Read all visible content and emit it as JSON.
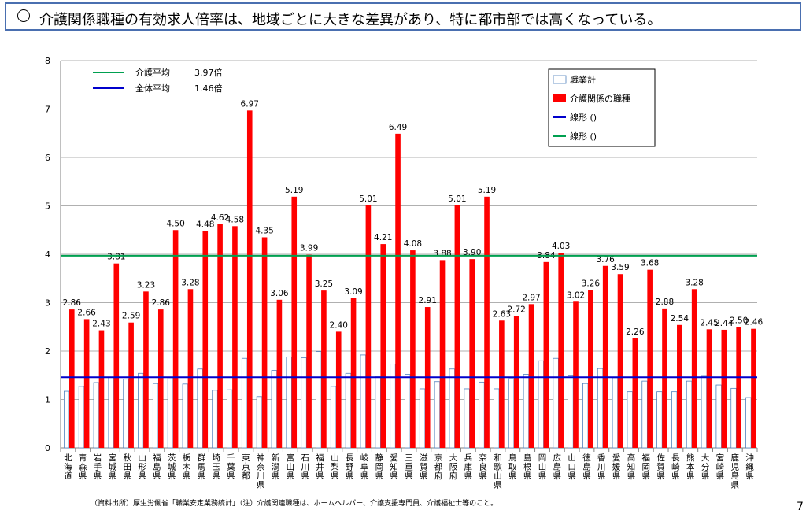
{
  "header": {
    "title": "介護関係職種の有効求人倍率は、地域ごとに大きな差異があり、特に都市部では高くなっている。"
  },
  "footer": {
    "source": "（資料出所）厚生労働省「職業安定業務統計」（注）介護関連職種は、ホームヘルパー、介護支援専門員、介護福祉士等のこと。",
    "page_number": "7"
  },
  "chart_data": {
    "type": "bar",
    "categories": [
      "北海道",
      "青森県",
      "岩手県",
      "宮城県",
      "秋田県",
      "山形県",
      "福島県",
      "茨城県",
      "栃木県",
      "群馬県",
      "埼玉県",
      "千葉県",
      "東京都",
      "神奈川県",
      "新潟県",
      "富山県",
      "石川県",
      "福井県",
      "山梨県",
      "長野県",
      "岐阜県",
      "静岡県",
      "愛知県",
      "三重県",
      "滋賀県",
      "京都府",
      "大阪府",
      "兵庫県",
      "奈良県",
      "和歌山県",
      "鳥取県",
      "島根県",
      "岡山県",
      "広島県",
      "山口県",
      "徳島県",
      "香川県",
      "愛媛県",
      "高知県",
      "福岡県",
      "佐賀県",
      "長崎県",
      "熊本県",
      "大分県",
      "宮崎県",
      "鹿児島県",
      "沖縄県"
    ],
    "series": [
      {
        "name": "職業計",
        "color": "#ffffff",
        "stroke": "#4f81bd",
        "values": [
          1.17,
          1.27,
          1.35,
          1.46,
          1.42,
          1.54,
          1.33,
          1.45,
          1.32,
          1.63,
          1.19,
          1.2,
          1.85,
          1.06,
          1.6,
          1.88,
          1.86,
          1.99,
          1.27,
          1.54,
          1.92,
          1.47,
          1.73,
          1.52,
          1.22,
          1.37,
          1.63,
          1.22,
          1.36,
          1.22,
          1.43,
          1.52,
          1.8,
          1.85,
          1.49,
          1.33,
          1.64,
          1.45,
          1.16,
          1.38,
          1.16,
          1.16,
          1.38,
          1.48,
          1.3,
          1.23,
          1.04
        ]
      },
      {
        "name": "介護関係の職種",
        "color": "#ff0000",
        "values": [
          2.86,
          2.66,
          2.43,
          3.81,
          2.59,
          3.23,
          2.86,
          4.5,
          3.28,
          4.48,
          4.62,
          4.58,
          6.97,
          4.35,
          3.06,
          5.19,
          3.99,
          3.25,
          2.4,
          3.09,
          5.01,
          4.21,
          6.49,
          4.08,
          2.91,
          3.88,
          5.01,
          3.9,
          5.19,
          2.63,
          2.72,
          2.97,
          3.84,
          4.03,
          3.02,
          3.26,
          3.76,
          3.59,
          2.26,
          3.68,
          2.88,
          2.54,
          3.28,
          2.45,
          2.44,
          2.5,
          2.46
        ]
      }
    ],
    "data_labels": [
      "2.86",
      "2.66",
      "2.43",
      "3.81",
      "2.59",
      "3.23",
      "2.86",
      "4.50",
      "3.28",
      "4.48",
      "4.62",
      "4.58",
      "6.97",
      "4.35",
      "3.06",
      "5.19",
      "3.99",
      "3.25",
      "2.40",
      "3.09",
      "5.01",
      "4.21",
      "6.49",
      "4.08",
      "2.91",
      "3.88",
      "5.01",
      "3.90",
      "5.19",
      "2.63",
      "2.72",
      "2.97",
      "3.84",
      "4.03",
      "3.02",
      "3.26",
      "3.76",
      "3.59",
      "2.26",
      "3.68",
      "2.88",
      "2.54",
      "3.28",
      "2.45",
      "2.44",
      "2.50",
      "2.46"
    ],
    "reference_lines": [
      {
        "name": "介護平均",
        "value": 3.97,
        "label": "3.97倍",
        "color": "#00a050"
      },
      {
        "name": "全体平均",
        "value": 1.46,
        "label": "1.46倍",
        "color": "#0000cc"
      }
    ],
    "legend": {
      "placement": "top-right",
      "items": [
        {
          "label": "職業計",
          "kind": "box",
          "color": "#ffffff",
          "stroke": "#4f81bd"
        },
        {
          "label": "介護関係の職種",
          "kind": "box",
          "color": "#ff0000"
        },
        {
          "label": "線形 ()",
          "kind": "line",
          "color": "#0000cc"
        },
        {
          "label": "線形 ()",
          "kind": "line",
          "color": "#00a050"
        }
      ]
    },
    "ylim": [
      0,
      8
    ],
    "yticks": [
      "0",
      "1",
      "2",
      "3",
      "4",
      "5",
      "6",
      "7",
      "8"
    ],
    "grid": true,
    "xlabel": "",
    "ylabel": ""
  }
}
